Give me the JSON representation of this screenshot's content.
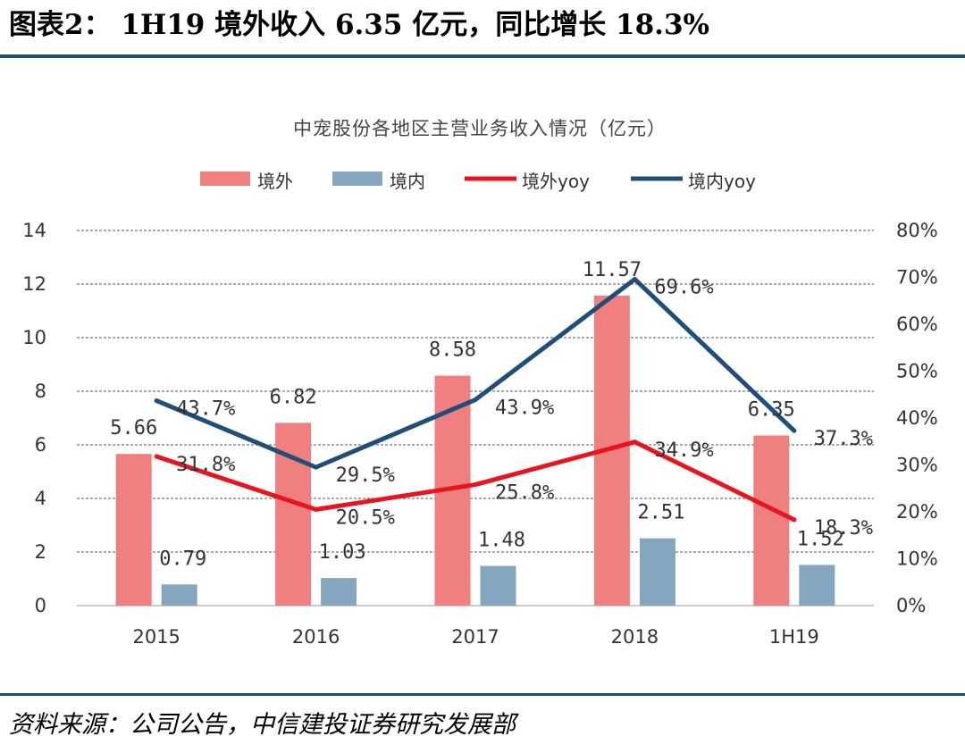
{
  "header": {
    "title": "图表2： 1H19 境外收入 6.35 亿元，同比增长 18.3%"
  },
  "source": "资料来源：公司公告，中信建投证券研究发展部",
  "chart_data": {
    "type": "bar",
    "title": "中宠股份各地区主营业务收入情况（亿元）",
    "categories": [
      "2015",
      "2016",
      "2017",
      "2018",
      "1H19"
    ],
    "series": [
      {
        "name": "境外",
        "kind": "bar",
        "axis": "left",
        "color": "#f08080",
        "values": [
          5.66,
          6.82,
          8.58,
          11.57,
          6.35
        ],
        "labels": [
          "5.66",
          "6.82",
          "8.58",
          "11.57",
          "6.35"
        ]
      },
      {
        "name": "境内",
        "kind": "bar",
        "axis": "left",
        "color": "#85a6bf",
        "values": [
          0.79,
          1.03,
          1.48,
          2.51,
          1.52
        ],
        "labels": [
          "0.79",
          "1.03",
          "1.48",
          "2.51",
          "1.52"
        ]
      },
      {
        "name": "境外yoy",
        "kind": "line",
        "axis": "right",
        "color": "#e8141e",
        "values": [
          31.8,
          20.5,
          25.8,
          34.9,
          18.3
        ],
        "labels": [
          "31.8%",
          "20.5%",
          "25.8%",
          "34.9%",
          "18.3%"
        ]
      },
      {
        "name": "境内yoy",
        "kind": "line",
        "axis": "right",
        "color": "#1f4e79",
        "values": [
          43.7,
          29.5,
          43.9,
          69.6,
          37.3
        ],
        "labels": [
          "43.7%",
          "29.5%",
          "43.9%",
          "69.6%",
          "37.3%"
        ]
      }
    ],
    "y_left": {
      "min": 0,
      "max": 14,
      "ticks": [
        "0",
        "2",
        "4",
        "6",
        "8",
        "10",
        "12",
        "14"
      ]
    },
    "y_right": {
      "min": 0,
      "max": 80,
      "ticks": [
        "0%",
        "10%",
        "20%",
        "30%",
        "40%",
        "50%",
        "60%",
        "70%",
        "80%"
      ]
    },
    "grid": true,
    "legend": "top-center"
  }
}
